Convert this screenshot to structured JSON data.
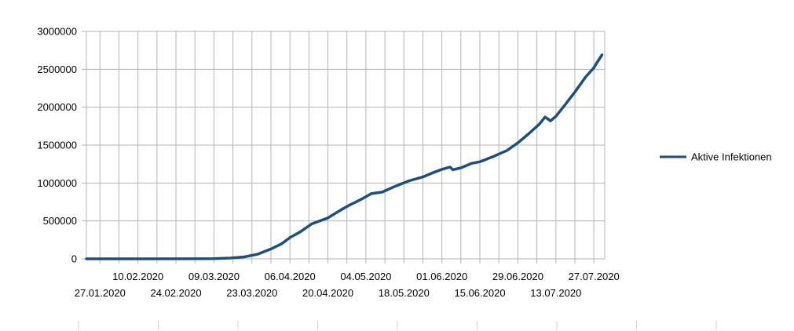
{
  "chart_data": {
    "type": "line",
    "title": "",
    "xlabel": "",
    "ylabel": "",
    "x_start": "22.01.2020",
    "x_end": "31.07.2020",
    "ylim": [
      0,
      3000000
    ],
    "y_ticks": [
      0,
      500000,
      1000000,
      1500000,
      2000000,
      2500000,
      3000000
    ],
    "x_tick_labels": [
      "27.01.2020",
      "10.02.2020",
      "24.02.2020",
      "09.03.2020",
      "23.03.2020",
      "06.04.2020",
      "20.04.2020",
      "04.05.2020",
      "18.05.2020",
      "01.06.2020",
      "15.06.2020",
      "29.06.2020",
      "13.07.2020",
      "27.07.2020"
    ],
    "grid": true,
    "legend": "right",
    "series": [
      {
        "name": "Aktive Infektionen",
        "color": "#1f4e79",
        "points": [
          [
            "22.01.2020",
            0
          ],
          [
            "15.02.2020",
            0
          ],
          [
            "09.03.2020",
            2000
          ],
          [
            "15.03.2020",
            10000
          ],
          [
            "20.03.2020",
            25000
          ],
          [
            "25.03.2020",
            60000
          ],
          [
            "30.03.2020",
            130000
          ],
          [
            "03.04.2020",
            200000
          ],
          [
            "06.04.2020",
            280000
          ],
          [
            "10.04.2020",
            360000
          ],
          [
            "14.04.2020",
            460000
          ],
          [
            "20.04.2020",
            540000
          ],
          [
            "25.04.2020",
            650000
          ],
          [
            "28.04.2020",
            710000
          ],
          [
            "02.05.2020",
            780000
          ],
          [
            "06.05.2020",
            860000
          ],
          [
            "10.05.2020",
            880000
          ],
          [
            "15.05.2020",
            960000
          ],
          [
            "20.05.2020",
            1030000
          ],
          [
            "25.05.2020",
            1080000
          ],
          [
            "29.05.2020",
            1140000
          ],
          [
            "01.06.2020",
            1180000
          ],
          [
            "04.06.2020",
            1210000
          ],
          [
            "05.06.2020",
            1175000
          ],
          [
            "08.06.2020",
            1200000
          ],
          [
            "12.06.2020",
            1260000
          ],
          [
            "15.06.2020",
            1280000
          ],
          [
            "20.06.2020",
            1350000
          ],
          [
            "25.06.2020",
            1430000
          ],
          [
            "29.06.2020",
            1530000
          ],
          [
            "03.07.2020",
            1650000
          ],
          [
            "07.07.2020",
            1780000
          ],
          [
            "09.07.2020",
            1870000
          ],
          [
            "11.07.2020",
            1820000
          ],
          [
            "13.07.2020",
            1880000
          ],
          [
            "17.07.2020",
            2060000
          ],
          [
            "20.07.2020",
            2200000
          ],
          [
            "24.07.2020",
            2400000
          ],
          [
            "27.07.2020",
            2520000
          ],
          [
            "28.07.2020",
            2580000
          ],
          [
            "30.07.2020",
            2690000
          ]
        ]
      }
    ]
  }
}
